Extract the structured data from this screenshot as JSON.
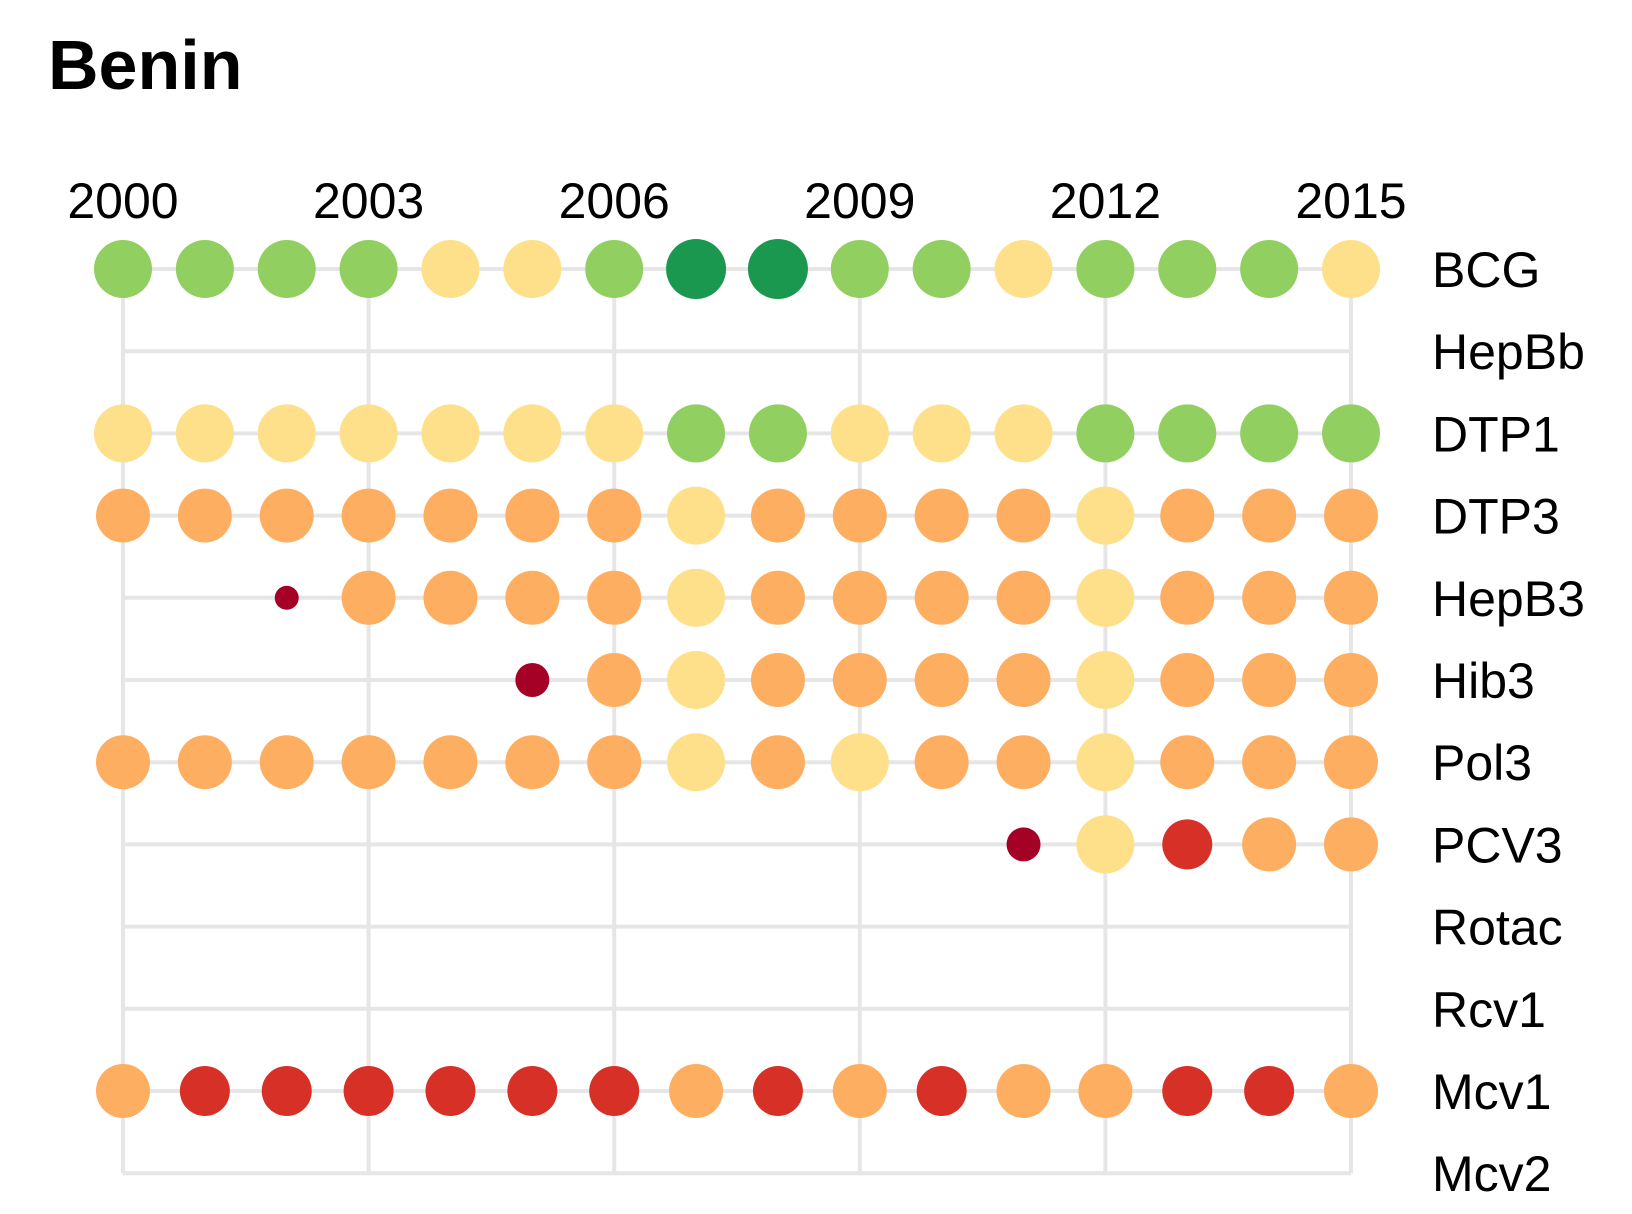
{
  "title": "Benin",
  "chart_data": {
    "type": "scatter",
    "title": "Benin",
    "xlabel": "",
    "ylabel": "",
    "x_ticks": [
      2000,
      2003,
      2006,
      2009,
      2012,
      2015
    ],
    "xlim": [
      2000,
      2015
    ],
    "grid": true,
    "vaccines": [
      "BCG",
      "HepBb",
      "DTP1",
      "DTP3",
      "HepB3",
      "Hib3",
      "Pol3",
      "PCV3",
      "Rotac",
      "Rcv1",
      "Mcv1",
      "Mcv2"
    ],
    "legend": "none",
    "colors": {
      "dark_green": "#1a9850",
      "green": "#91cf60",
      "yellow": "#fee08b",
      "orange": "#fdae61",
      "red": "#d73027",
      "dark_red": "#a50026"
    },
    "series": [
      {
        "vaccine": "BCG",
        "start": 2000,
        "levels": [
          "green",
          "green",
          "green",
          "green",
          "yellow",
          "yellow",
          "green",
          "dark_green",
          "dark_green",
          "green",
          "green",
          "yellow",
          "green",
          "green",
          "green",
          "yellow"
        ]
      },
      {
        "vaccine": "HepBb",
        "start": 2000,
        "levels": []
      },
      {
        "vaccine": "DTP1",
        "start": 2000,
        "levels": [
          "yellow",
          "yellow",
          "yellow",
          "yellow",
          "yellow",
          "yellow",
          "yellow",
          "green",
          "green",
          "yellow",
          "yellow",
          "yellow",
          "green",
          "green",
          "green",
          "green"
        ]
      },
      {
        "vaccine": "DTP3",
        "start": 2000,
        "levels": [
          "orange",
          "orange",
          "orange",
          "orange",
          "orange",
          "orange",
          "orange",
          "yellow",
          "orange",
          "orange",
          "orange",
          "orange",
          "yellow",
          "orange",
          "orange",
          "orange"
        ]
      },
      {
        "vaccine": "HepB3",
        "start": 2002,
        "levels": [
          "dark_red",
          "orange",
          "orange",
          "orange",
          "orange",
          "yellow",
          "orange",
          "orange",
          "orange",
          "orange",
          "yellow",
          "orange",
          "orange",
          "orange"
        ]
      },
      {
        "vaccine": "Hib3",
        "start": 2005,
        "levels": [
          "dark_red",
          "orange",
          "yellow",
          "orange",
          "orange",
          "orange",
          "orange",
          "yellow",
          "orange",
          "orange",
          "orange"
        ]
      },
      {
        "vaccine": "Pol3",
        "start": 2000,
        "levels": [
          "orange",
          "orange",
          "orange",
          "orange",
          "orange",
          "orange",
          "orange",
          "yellow",
          "orange",
          "yellow",
          "orange",
          "orange",
          "yellow",
          "orange",
          "orange",
          "orange"
        ]
      },
      {
        "vaccine": "PCV3",
        "start": 2011,
        "levels": [
          "dark_red",
          "yellow",
          "red",
          "orange",
          "orange"
        ]
      },
      {
        "vaccine": "Rotac",
        "start": 2000,
        "levels": []
      },
      {
        "vaccine": "Rcv1",
        "start": 2000,
        "levels": []
      },
      {
        "vaccine": "Mcv1",
        "start": 2000,
        "levels": [
          "orange",
          "red",
          "red",
          "red",
          "red",
          "red",
          "red",
          "orange",
          "red",
          "orange",
          "red",
          "orange",
          "orange",
          "red",
          "red",
          "orange"
        ]
      },
      {
        "vaccine": "Mcv2",
        "start": 2000,
        "levels": []
      }
    ]
  }
}
